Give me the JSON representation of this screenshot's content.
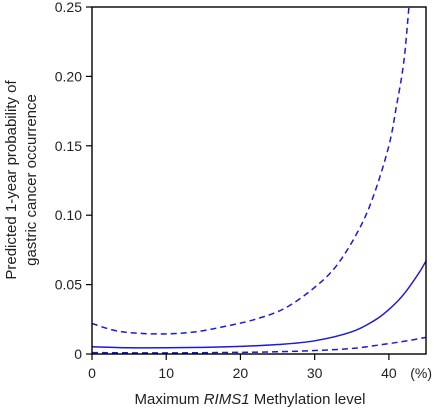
{
  "chart_data": {
    "type": "line",
    "ylabel_lines": [
      "Predicted 1-year probability of",
      "gastric cancer occurrence"
    ],
    "xlabel_parts": {
      "before": "Maximum ",
      "italic": "RIMS1",
      "after": " Methylation level"
    },
    "x_unit_label": "(%)",
    "xlim": [
      0,
      45
    ],
    "ylim": [
      0,
      0.25
    ],
    "x_ticks": [
      0,
      10,
      20,
      30,
      40
    ],
    "x_tick_labels": [
      "0",
      "10",
      "20",
      "30",
      "40"
    ],
    "y_ticks": [
      0,
      0.05,
      0.1,
      0.15,
      0.2,
      0.25
    ],
    "y_tick_labels": [
      "0",
      "0.05",
      "0.10",
      "0.15",
      "0.20",
      "0.25"
    ],
    "grid": false,
    "series": [
      {
        "style": "solid",
        "x": [
          0,
          5,
          10,
          15,
          20,
          25,
          30,
          35,
          38,
          40,
          42,
          44,
          45
        ],
        "y": [
          0.0052,
          0.0045,
          0.0045,
          0.0048,
          0.0055,
          0.0068,
          0.0095,
          0.016,
          0.024,
          0.032,
          0.043,
          0.058,
          0.067
        ]
      },
      {
        "style": "dashed",
        "x": [
          0,
          3,
          6,
          10,
          14,
          18,
          22,
          26,
          30,
          33,
          36,
          38,
          40,
          41,
          42,
          42.7
        ],
        "y": [
          0.022,
          0.017,
          0.015,
          0.0145,
          0.016,
          0.02,
          0.025,
          0.033,
          0.048,
          0.064,
          0.09,
          0.115,
          0.15,
          0.178,
          0.21,
          0.25
        ]
      },
      {
        "style": "dashed",
        "x": [
          0,
          10,
          20,
          25,
          30,
          35,
          40,
          43,
          45
        ],
        "y": [
          0.001,
          0.0008,
          0.0012,
          0.0016,
          0.0025,
          0.004,
          0.0075,
          0.01,
          0.012
        ]
      }
    ],
    "line_color": "#1a1adb"
  }
}
